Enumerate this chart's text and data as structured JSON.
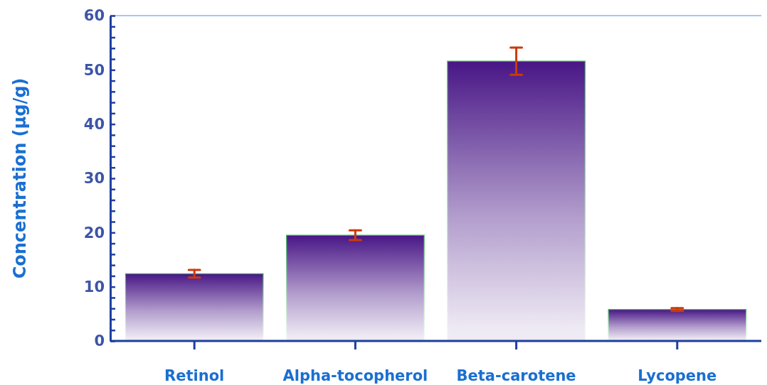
{
  "chart_data": {
    "type": "bar",
    "ylabel": "Concentration (μg/g)",
    "categories": [
      "Retinol",
      "Alpha-tocopherol",
      "Beta-carotene",
      "Lycopene"
    ],
    "values": [
      12.4,
      19.5,
      51.6,
      5.8
    ],
    "errors": [
      0.7,
      0.9,
      2.5,
      0.25
    ],
    "color": "#3f0a80",
    "ylim": [
      0,
      60
    ],
    "yticks": [
      0,
      {
        "value": 2,
        "label": null
      },
      {
        "value": 4,
        "label": null
      },
      {
        "value": 6,
        "label": null
      },
      {
        "value": 8,
        "label": null
      },
      10,
      {
        "value": 12,
        "label": null
      },
      {
        "value": 14,
        "label": null
      },
      {
        "value": 16,
        "label": null
      },
      {
        "value": 18,
        "label": null
      },
      20,
      {
        "value": 22,
        "label": null
      },
      {
        "value": 24,
        "label": null
      },
      {
        "value": 26,
        "label": null
      },
      {
        "value": 28,
        "label": null
      },
      30,
      {
        "value": 32,
        "label": null
      },
      {
        "value": 34,
        "label": null
      },
      {
        "value": 36,
        "label": null
      },
      {
        "value": 38,
        "label": null
      },
      40,
      {
        "value": 42,
        "label": null
      },
      {
        "value": 44,
        "label": null
      },
      {
        "value": 46,
        "label": null
      },
      {
        "value": 48,
        "label": null
      },
      50,
      {
        "value": 52,
        "label": null
      },
      {
        "value": 54,
        "label": null
      },
      {
        "value": 56,
        "label": null
      },
      {
        "value": 58,
        "label": null
      },
      60
    ]
  }
}
